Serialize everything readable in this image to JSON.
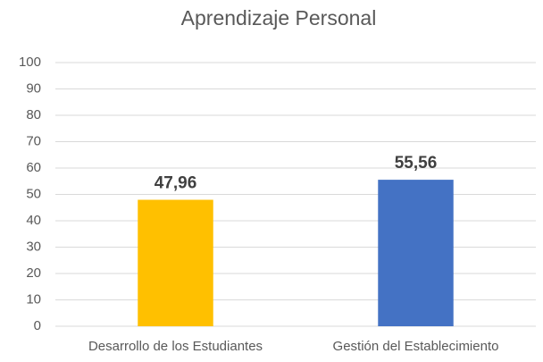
{
  "chart_data": {
    "type": "bar",
    "title": "Aprendizaje Personal",
    "categories": [
      "Desarrollo de los Estudiantes",
      "Gestión del Establecimiento"
    ],
    "values": [
      47.96,
      55.56
    ],
    "value_labels": [
      "47,96",
      "55,56"
    ],
    "colors": [
      "#ffc000",
      "#4472c4"
    ],
    "ylim": [
      0,
      100
    ],
    "yticks": [
      0,
      10,
      20,
      30,
      40,
      50,
      60,
      70,
      80,
      90,
      100
    ],
    "grid": true
  }
}
